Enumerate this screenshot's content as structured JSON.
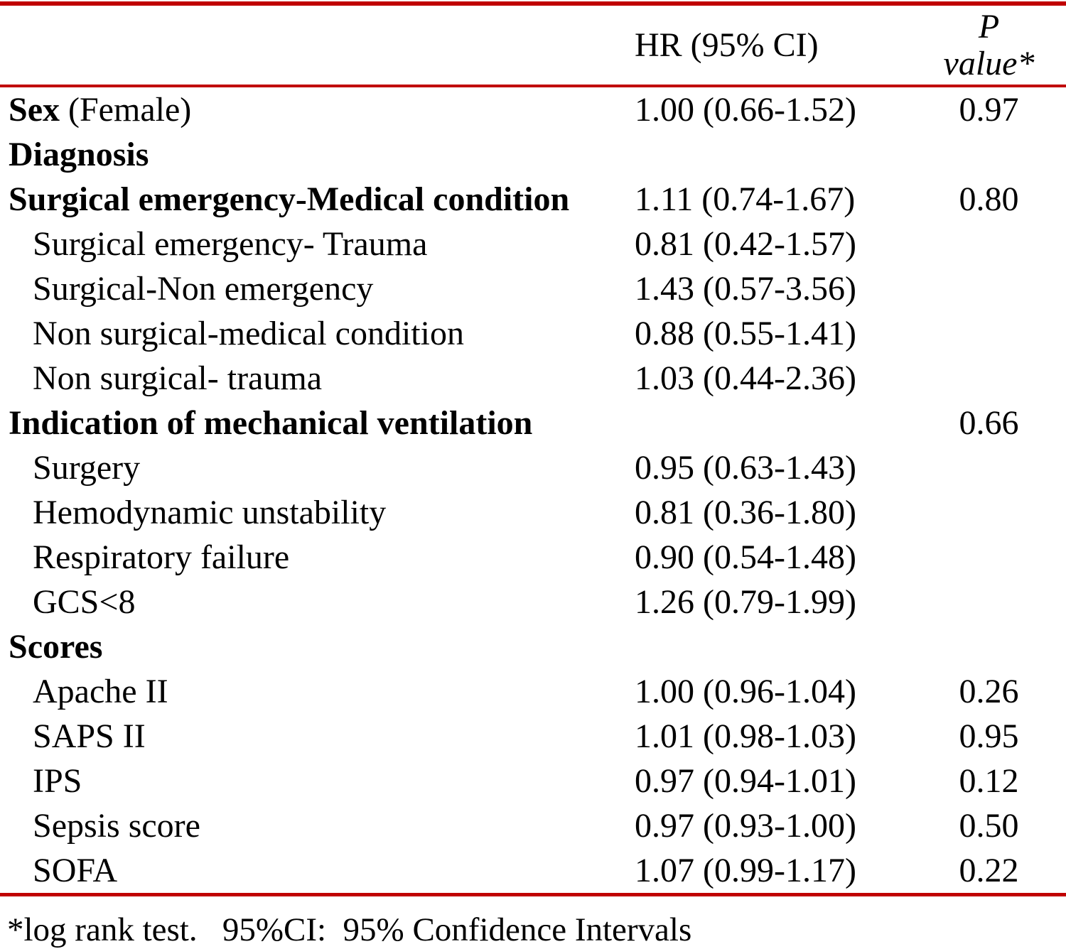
{
  "table": {
    "accent_color": "#c00000",
    "header": {
      "hr": "HR (95% CI)",
      "p_line1": "P",
      "p_line2": "value*"
    },
    "rows": [
      {
        "label": "Sex",
        "label_suffix": " (Female)",
        "bold_prefix": true,
        "indent": false,
        "hr": "1.00 (0.66-1.52)",
        "p": "0.97"
      },
      {
        "label": "Diagnosis",
        "bold": true,
        "indent": false,
        "hr": "",
        "p": ""
      },
      {
        "label": "Surgical emergency-Medical condition",
        "bold": true,
        "indent": false,
        "hr": "1.11 (0.74-1.67)",
        "p": "0.80"
      },
      {
        "label": "Surgical emergency- Trauma",
        "bold": false,
        "indent": true,
        "hr": "0.81 (0.42-1.57)",
        "p": ""
      },
      {
        "label": "Surgical-Non emergency",
        "bold": false,
        "indent": true,
        "hr": "1.43 (0.57-3.56)",
        "p": ""
      },
      {
        "label": "Non surgical-medical condition",
        "bold": false,
        "indent": true,
        "hr": "0.88 (0.55-1.41)",
        "p": ""
      },
      {
        "label": "Non surgical- trauma",
        "bold": false,
        "indent": true,
        "hr": "1.03 (0.44-2.36)",
        "p": ""
      },
      {
        "label": "Indication of mechanical ventilation",
        "bold": true,
        "indent": false,
        "hr": "",
        "p": "0.66"
      },
      {
        "label": "Surgery",
        "bold": false,
        "indent": true,
        "hr": "0.95 (0.63-1.43)",
        "p": ""
      },
      {
        "label": "Hemodynamic unstability",
        "bold": false,
        "indent": true,
        "hr": "0.81 (0.36-1.80)",
        "p": ""
      },
      {
        "label": "Respiratory failure",
        "bold": false,
        "indent": true,
        "hr": "0.90 (0.54-1.48)",
        "p": ""
      },
      {
        "label": "GCS<8",
        "bold": false,
        "indent": true,
        "hr": "1.26 (0.79-1.99)",
        "p": ""
      },
      {
        "label": "Scores",
        "bold": true,
        "indent": false,
        "hr": "",
        "p": ""
      },
      {
        "label": "Apache II",
        "bold": false,
        "indent": true,
        "hr": "1.00 (0.96-1.04)",
        "p": "0.26"
      },
      {
        "label": "SAPS II",
        "bold": false,
        "indent": true,
        "hr": "1.01 (0.98-1.03)",
        "p": "0.95"
      },
      {
        "label": "IPS",
        "bold": false,
        "indent": true,
        "hr": "0.97 (0.94-1.01)",
        "p": "0.12"
      },
      {
        "label": "Sepsis score",
        "bold": false,
        "indent": true,
        "hr": "0.97 (0.93-1.00)",
        "p": "0.50"
      },
      {
        "label": "SOFA",
        "bold": false,
        "indent": true,
        "hr": "1.07 (0.99-1.17)",
        "p": "0.22"
      }
    ],
    "footnote": "*log rank test.   95%CI:  95% Confidence Intervals"
  }
}
